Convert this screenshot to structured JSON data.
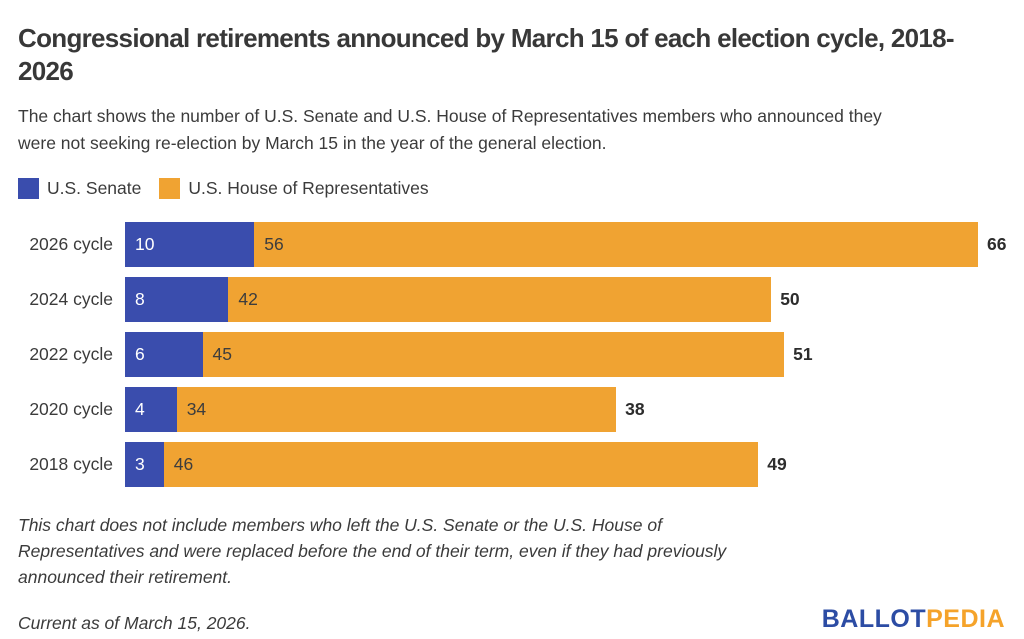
{
  "page": {
    "title": "Congressional retirements announced by March 15 of each election cycle, 2018-2026",
    "subtitle": "The chart shows the number of U.S. Senate and U.S. House of Representatives members who announced they were not seeking re-election by March 15 in the year of the general election.",
    "footnote": "This chart does not include members who left the U.S. Senate or the U.S. House of Representatives and were replaced before the end of their term, even if they had previously announced their retirement.",
    "current_as_of": "Current as of March 15, 2026."
  },
  "logo": {
    "part1": "BALLOT",
    "part2": "PEDIA",
    "part1_color": "#2C4CA4",
    "part2_color": "#F5A32A"
  },
  "chart_data": {
    "type": "bar",
    "orientation": "horizontal",
    "stacked": true,
    "title": "Congressional retirements announced by March 15 of each election cycle, 2018-2026",
    "categories": [
      "2026 cycle",
      "2024 cycle",
      "2022 cycle",
      "2020 cycle",
      "2018 cycle"
    ],
    "series": [
      {
        "name": "U.S. Senate",
        "color": "#3A4DAD",
        "values": [
          10,
          8,
          6,
          4,
          3
        ]
      },
      {
        "name": "U.S. House of Representatives",
        "color": "#F0A332",
        "values": [
          56,
          42,
          45,
          34,
          46
        ]
      }
    ],
    "totals": [
      66,
      50,
      51,
      38,
      49
    ],
    "xlim": [
      0,
      66
    ],
    "grid": false,
    "legend_position": "top",
    "value_labels": "inside-start",
    "total_labels": "outside-end"
  }
}
